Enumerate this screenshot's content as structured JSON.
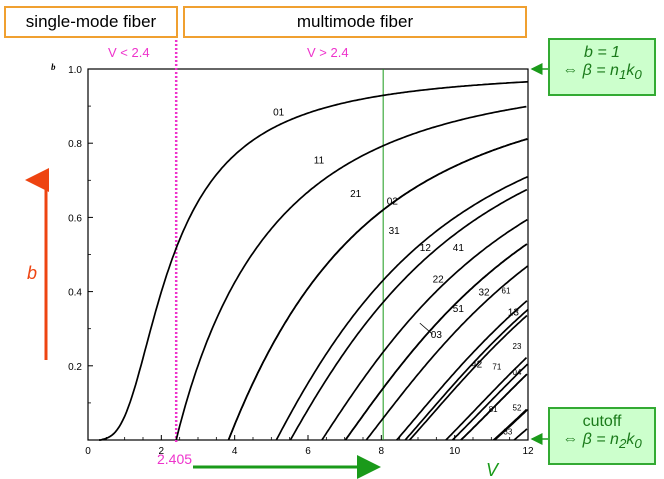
{
  "header": {
    "single_mode": "single-mode fiber",
    "multimode": "multimode fiber"
  },
  "annotations": {
    "v_lt": "V < 2.4",
    "v_gt": "V > 2.4",
    "cutoff_value": "2.405",
    "b_axis_letter": "b",
    "v_axis_letter": "V",
    "b_small": "b"
  },
  "top_box": {
    "line1": "b = 1",
    "line2_prefix": "⇔ β = n",
    "sub1": "1",
    "mid": "k",
    "sub2": "0"
  },
  "bottom_box": {
    "line1": "cutoff",
    "line2_prefix": "⇔ β = n",
    "sub1": "2",
    "mid": "k",
    "sub2": "0"
  },
  "colors": {
    "pink": "#ee33cc",
    "green": "#1a9a1a",
    "red_arrow": "#ee4411",
    "orange": "#f0a030"
  },
  "chart_data": {
    "type": "line",
    "xlabel": "V",
    "ylabel": "b",
    "xlim": [
      0,
      12
    ],
    "ylim": [
      0,
      1.0
    ],
    "xticks": [
      "0",
      "2",
      "4",
      "6",
      "8",
      "10",
      "12"
    ],
    "yticks": [
      "0.2",
      "0.4",
      "0.6",
      "0.8",
      "1.0"
    ],
    "vlines": [
      {
        "x": 2.405,
        "style": "dotted-pink"
      },
      {
        "x": 8.05,
        "style": "thin-green"
      }
    ],
    "series": [
      {
        "name": "01",
        "cutoff": 0.0,
        "label_x": 5.2,
        "label_y": 0.875
      },
      {
        "name": "11",
        "cutoff": 2.405,
        "label_x": 6.3,
        "label_y": 0.745
      },
      {
        "name": "21",
        "cutoff": 3.832,
        "label_x": 7.3,
        "label_y": 0.655
      },
      {
        "name": "02",
        "cutoff": 3.832,
        "label_x": 8.3,
        "label_y": 0.635
      },
      {
        "name": "31",
        "cutoff": 5.136,
        "label_x": 8.35,
        "label_y": 0.555
      },
      {
        "name": "12",
        "cutoff": 5.52,
        "label_x": 9.2,
        "label_y": 0.51
      },
      {
        "name": "41",
        "cutoff": 6.38,
        "label_x": 10.1,
        "label_y": 0.51
      },
      {
        "name": "22",
        "cutoff": 7.02,
        "label_x": 9.55,
        "label_y": 0.425
      },
      {
        "name": "03",
        "cutoff": 7.02,
        "label_x": 9.5,
        "label_y": 0.275
      },
      {
        "name": "51",
        "cutoff": 7.59,
        "label_x": 10.1,
        "label_y": 0.345
      },
      {
        "name": "32",
        "cutoff": 8.42,
        "label_x": 10.8,
        "label_y": 0.39
      },
      {
        "name": "61",
        "cutoff": 8.77,
        "label_x": 11.4,
        "label_y": 0.395
      },
      {
        "name": "13",
        "cutoff": 8.65,
        "label_x": 11.6,
        "label_y": 0.335
      },
      {
        "name": "42",
        "cutoff": 9.76,
        "label_x": 10.6,
        "label_y": 0.195
      },
      {
        "name": "71",
        "cutoff": 9.94,
        "label_x": 11.15,
        "label_y": 0.19
      },
      {
        "name": "23",
        "cutoff": 10.17,
        "label_x": 11.7,
        "label_y": 0.245
      },
      {
        "name": "04",
        "cutoff": 10.17,
        "label_x": 11.7,
        "label_y": 0.175
      },
      {
        "name": "81",
        "cutoff": 11.09,
        "label_x": 11.05,
        "label_y": 0.075
      },
      {
        "name": "52",
        "cutoff": 11.06,
        "label_x": 11.7,
        "label_y": 0.08
      },
      {
        "name": "33",
        "cutoff": 11.62,
        "label_x": 11.45,
        "label_y": 0.015
      }
    ]
  }
}
